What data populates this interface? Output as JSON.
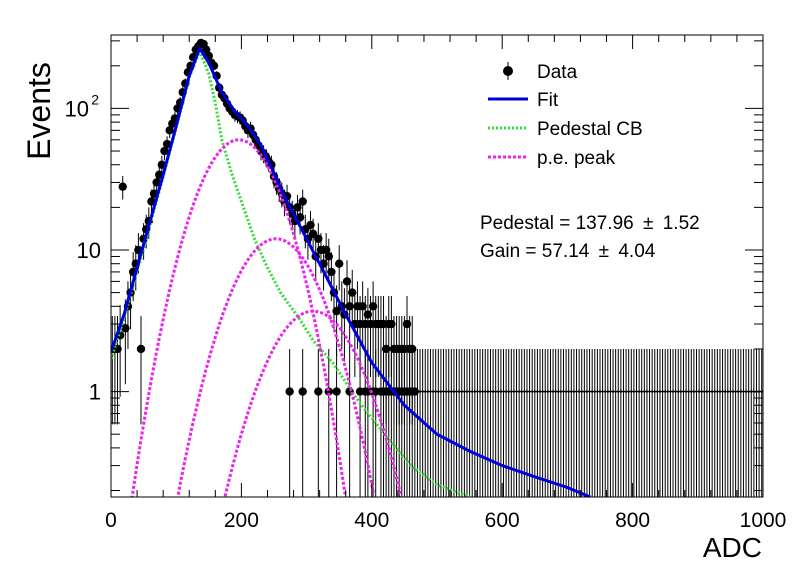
{
  "chart_data": {
    "type": "scatter",
    "title": "",
    "xlabel": "ADC",
    "ylabel": "Events",
    "xlim": [
      0,
      1000
    ],
    "ylim": [
      0.18,
      330
    ],
    "yscale": "log",
    "xticks": [
      {
        "value": 0,
        "label": "0"
      },
      {
        "value": 200,
        "label": "200"
      },
      {
        "value": 400,
        "label": "400"
      },
      {
        "value": 600,
        "label": "600"
      },
      {
        "value": 800,
        "label": "800"
      },
      {
        "value": 1000,
        "label": "1000"
      }
    ],
    "yticks": [
      {
        "value": 1,
        "label": "1"
      },
      {
        "value": 10,
        "label": "10"
      },
      {
        "value": 100,
        "label": "10",
        "exponent": "2"
      }
    ],
    "bin_width": 4,
    "legend": {
      "position": "top-right",
      "entries": [
        {
          "label": "Data",
          "style": "marker",
          "color": "#000000"
        },
        {
          "label": "Fit",
          "style": "line",
          "color": "#0000dd"
        },
        {
          "label": "Pedestal CB",
          "style": "dotted",
          "color": "#33dd33"
        },
        {
          "label": "p.e. peak",
          "style": "dotted",
          "color": "#ee22ee"
        }
      ]
    },
    "annotations": [
      {
        "text": "Pedestal = 137.96",
        "pm": "±",
        "err": "1.52"
      },
      {
        "text": "Gain = 57.14",
        "pm": "±",
        "err": "4.04"
      }
    ],
    "fit": {
      "color": "#0000dd",
      "points": [
        [
          0,
          1.9
        ],
        [
          20,
          3.5
        ],
        [
          40,
          7.5
        ],
        [
          60,
          16
        ],
        [
          80,
          34
        ],
        [
          100,
          75
        ],
        [
          120,
          170
        ],
        [
          136,
          265
        ],
        [
          150,
          210
        ],
        [
          170,
          130
        ],
        [
          190,
          95
        ],
        [
          210,
          75
        ],
        [
          230,
          55
        ],
        [
          250,
          35
        ],
        [
          270,
          22
        ],
        [
          300,
          12
        ],
        [
          330,
          6.5
        ],
        [
          360,
          3.5
        ],
        [
          400,
          1.6
        ],
        [
          450,
          0.8
        ],
        [
          500,
          0.5
        ],
        [
          550,
          0.38
        ],
        [
          600,
          0.3
        ],
        [
          650,
          0.25
        ],
        [
          700,
          0.21
        ],
        [
          735,
          0.18
        ]
      ]
    },
    "pedestal_cb": {
      "color": "#33dd33",
      "points": [
        [
          0,
          1.7
        ],
        [
          20,
          3.3
        ],
        [
          40,
          7
        ],
        [
          60,
          15
        ],
        [
          80,
          33
        ],
        [
          100,
          73
        ],
        [
          120,
          165
        ],
        [
          136,
          255
        ],
        [
          150,
          175
        ],
        [
          160,
          110
        ],
        [
          170,
          60
        ],
        [
          185,
          35
        ],
        [
          200,
          22
        ],
        [
          220,
          12
        ],
        [
          240,
          7.5
        ],
        [
          260,
          5
        ],
        [
          290,
          3.2
        ],
        [
          310,
          2.3
        ],
        [
          340,
          1.6
        ],
        [
          380,
          0.85
        ],
        [
          420,
          0.5
        ],
        [
          460,
          0.3
        ],
        [
          500,
          0.22
        ],
        [
          550,
          0.18
        ]
      ]
    },
    "pe_peaks": [
      {
        "color": "#ee22ee",
        "mean": 196,
        "peak": 60,
        "sigma": 48,
        "range": [
          5,
          420
        ]
      },
      {
        "color": "#ee22ee",
        "mean": 253,
        "peak": 12,
        "sigma": 52,
        "range": [
          55,
          470
        ]
      },
      {
        "color": "#ee22ee",
        "mean": 310,
        "peak": 3.7,
        "sigma": 55,
        "range": [
          130,
          475
        ]
      }
    ],
    "data_points": [
      [
        2,
        2
      ],
      [
        6,
        2
      ],
      [
        10,
        2
      ],
      [
        14,
        2.5
      ],
      [
        18,
        28
      ],
      [
        22,
        2.8
      ],
      [
        26,
        4
      ],
      [
        30,
        5
      ],
      [
        34,
        7
      ],
      [
        38,
        8
      ],
      [
        42,
        10
      ],
      [
        46,
        2
      ],
      [
        50,
        12
      ],
      [
        54,
        14
      ],
      [
        58,
        16
      ],
      [
        62,
        22
      ],
      [
        66,
        25
      ],
      [
        70,
        30
      ],
      [
        74,
        34
      ],
      [
        78,
        40
      ],
      [
        82,
        50
      ],
      [
        86,
        56
      ],
      [
        90,
        70
      ],
      [
        94,
        78
      ],
      [
        98,
        85
      ],
      [
        102,
        100
      ],
      [
        106,
        110
      ],
      [
        110,
        130
      ],
      [
        114,
        150
      ],
      [
        118,
        180
      ],
      [
        122,
        200
      ],
      [
        126,
        230
      ],
      [
        130,
        260
      ],
      [
        134,
        275
      ],
      [
        138,
        290
      ],
      [
        142,
        285
      ],
      [
        146,
        260
      ],
      [
        150,
        235
      ],
      [
        154,
        210
      ],
      [
        158,
        200
      ],
      [
        162,
        170
      ],
      [
        166,
        140
      ],
      [
        170,
        125
      ],
      [
        174,
        118
      ],
      [
        178,
        108
      ],
      [
        182,
        100
      ],
      [
        186,
        95
      ],
      [
        190,
        90
      ],
      [
        194,
        88
      ],
      [
        198,
        86
      ],
      [
        202,
        82
      ],
      [
        206,
        75
      ],
      [
        210,
        70
      ],
      [
        214,
        72
      ],
      [
        218,
        65
      ],
      [
        222,
        60
      ],
      [
        226,
        55
      ],
      [
        230,
        50
      ],
      [
        234,
        48
      ],
      [
        238,
        45
      ],
      [
        242,
        42
      ],
      [
        246,
        40
      ],
      [
        250,
        33
      ],
      [
        254,
        30
      ],
      [
        258,
        27
      ],
      [
        262,
        25
      ],
      [
        266,
        22
      ],
      [
        270,
        24
      ],
      [
        274,
        20
      ],
      [
        278,
        18
      ],
      [
        282,
        16
      ],
      [
        286,
        20
      ],
      [
        290,
        17
      ],
      [
        294,
        22
      ],
      [
        298,
        14
      ],
      [
        302,
        12
      ],
      [
        306,
        15
      ],
      [
        310,
        13
      ],
      [
        314,
        9
      ],
      [
        318,
        12
      ],
      [
        322,
        10
      ],
      [
        326,
        8
      ],
      [
        330,
        10
      ],
      [
        334,
        9
      ],
      [
        338,
        7
      ],
      [
        342,
        5
      ],
      [
        346,
        3.7
      ],
      [
        350,
        8
      ],
      [
        354,
        4
      ],
      [
        358,
        3.5
      ],
      [
        362,
        6
      ],
      [
        366,
        4
      ],
      [
        370,
        5
      ],
      [
        374,
        3
      ],
      [
        378,
        4
      ],
      [
        382,
        3
      ],
      [
        386,
        4
      ],
      [
        390,
        3
      ],
      [
        394,
        3.5
      ],
      [
        398,
        3
      ],
      [
        402,
        4
      ],
      [
        406,
        3
      ],
      [
        410,
        3
      ],
      [
        414,
        3
      ],
      [
        418,
        3
      ],
      [
        422,
        2
      ],
      [
        426,
        3
      ],
      [
        430,
        3
      ],
      [
        434,
        2
      ],
      [
        438,
        2
      ],
      [
        442,
        2
      ],
      [
        446,
        2
      ],
      [
        450,
        2
      ],
      [
        454,
        3
      ],
      [
        458,
        2
      ],
      [
        462,
        2
      ],
      [
        274,
        1
      ],
      [
        294,
        1
      ],
      [
        318,
        1
      ],
      [
        334,
        1
      ],
      [
        346,
        1
      ],
      [
        366,
        1
      ],
      [
        382,
        1
      ],
      [
        390,
        1
      ],
      [
        394,
        1
      ],
      [
        402,
        1
      ],
      [
        406,
        1
      ],
      [
        414,
        1
      ],
      [
        418,
        1
      ],
      [
        422,
        1
      ],
      [
        426,
        1
      ],
      [
        430,
        1
      ],
      [
        434,
        1
      ],
      [
        438,
        1
      ],
      [
        442,
        1
      ],
      [
        446,
        1
      ],
      [
        450,
        1
      ],
      [
        454,
        1
      ],
      [
        458,
        1
      ],
      [
        462,
        1
      ],
      [
        466,
        1
      ],
      [
        470,
        1
      ],
      [
        474,
        1
      ],
      [
        478,
        1
      ],
      [
        482,
        1
      ],
      [
        486,
        1
      ],
      [
        490,
        1
      ],
      [
        494,
        1
      ],
      [
        498,
        1
      ],
      [
        502,
        1
      ],
      [
        506,
        1
      ],
      [
        510,
        1
      ],
      [
        514,
        1
      ],
      [
        518,
        1
      ],
      [
        522,
        1
      ],
      [
        526,
        1
      ],
      [
        530,
        1
      ],
      [
        534,
        1
      ],
      [
        538,
        1
      ],
      [
        542,
        1
      ],
      [
        546,
        1
      ],
      [
        550,
        1
      ],
      [
        554,
        1
      ],
      [
        558,
        1
      ],
      [
        562,
        1
      ],
      [
        566,
        1
      ],
      [
        570,
        1
      ],
      [
        574,
        1
      ],
      [
        578,
        1
      ],
      [
        582,
        1
      ],
      [
        586,
        1
      ],
      [
        590,
        1
      ],
      [
        594,
        1
      ],
      [
        598,
        1
      ],
      [
        602,
        1
      ],
      [
        606,
        1
      ],
      [
        610,
        1
      ],
      [
        614,
        1
      ],
      [
        618,
        1
      ],
      [
        622,
        1
      ],
      [
        626,
        1
      ],
      [
        630,
        1
      ],
      [
        634,
        1
      ],
      [
        638,
        1
      ],
      [
        642,
        1
      ],
      [
        646,
        1
      ],
      [
        650,
        1
      ],
      [
        654,
        1
      ],
      [
        658,
        1
      ],
      [
        662,
        1
      ],
      [
        666,
        1
      ],
      [
        670,
        1
      ],
      [
        674,
        1
      ],
      [
        678,
        1
      ],
      [
        682,
        1
      ],
      [
        686,
        1
      ],
      [
        690,
        1
      ],
      [
        694,
        1
      ],
      [
        698,
        1
      ],
      [
        702,
        1
      ],
      [
        706,
        1
      ],
      [
        710,
        1
      ],
      [
        714,
        1
      ],
      [
        718,
        1
      ],
      [
        722,
        1
      ],
      [
        726,
        1
      ],
      [
        730,
        1
      ],
      [
        734,
        1
      ],
      [
        738,
        1
      ],
      [
        742,
        1
      ],
      [
        746,
        1
      ],
      [
        750,
        1
      ],
      [
        754,
        1
      ],
      [
        758,
        1
      ],
      [
        762,
        1
      ],
      [
        766,
        1
      ],
      [
        770,
        1
      ],
      [
        774,
        1
      ],
      [
        778,
        1
      ],
      [
        782,
        1
      ],
      [
        786,
        1
      ],
      [
        790,
        1
      ],
      [
        794,
        1
      ],
      [
        798,
        1
      ],
      [
        802,
        1
      ],
      [
        806,
        1
      ],
      [
        810,
        1
      ],
      [
        814,
        1
      ],
      [
        818,
        1
      ],
      [
        822,
        1
      ],
      [
        826,
        1
      ],
      [
        830,
        1
      ],
      [
        834,
        1
      ],
      [
        838,
        1
      ],
      [
        842,
        1
      ],
      [
        846,
        1
      ],
      [
        850,
        1
      ],
      [
        854,
        1
      ],
      [
        858,
        1
      ],
      [
        862,
        1
      ],
      [
        866,
        1
      ],
      [
        870,
        1
      ],
      [
        874,
        1
      ],
      [
        878,
        1
      ],
      [
        882,
        1
      ],
      [
        886,
        1
      ],
      [
        890,
        1
      ],
      [
        894,
        1
      ],
      [
        898,
        1
      ],
      [
        902,
        1
      ],
      [
        906,
        1
      ],
      [
        910,
        1
      ],
      [
        914,
        1
      ],
      [
        918,
        1
      ],
      [
        922,
        1
      ],
      [
        926,
        1
      ],
      [
        930,
        1
      ],
      [
        934,
        1
      ],
      [
        938,
        1
      ],
      [
        942,
        1
      ],
      [
        946,
        1
      ],
      [
        950,
        1
      ],
      [
        954,
        1
      ],
      [
        958,
        1
      ],
      [
        962,
        1
      ],
      [
        966,
        1
      ],
      [
        970,
        1
      ],
      [
        974,
        1
      ],
      [
        978,
        1
      ],
      [
        982,
        1
      ],
      [
        986,
        1
      ],
      [
        990,
        1
      ],
      [
        994,
        1
      ],
      [
        998,
        1
      ]
    ]
  }
}
